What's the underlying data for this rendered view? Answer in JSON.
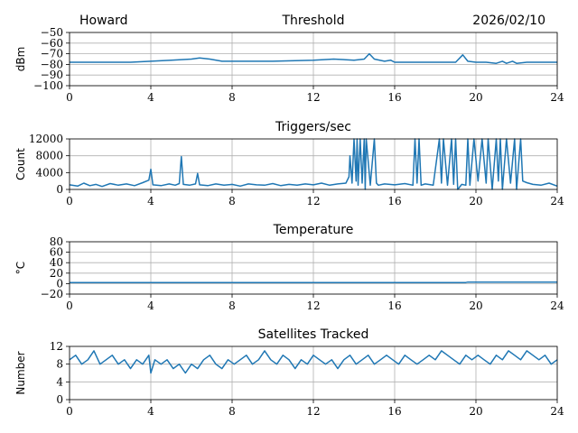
{
  "header": {
    "station": "Howard",
    "date": "2026/02/10"
  },
  "chart_data": [
    {
      "type": "line",
      "title": "Threshold",
      "ylabel": "dBm",
      "xlim": [
        0,
        24
      ],
      "ylim": [
        -100,
        -50
      ],
      "xticks": [
        0,
        4,
        8,
        12,
        16,
        20,
        24
      ],
      "yticks": [
        -100,
        -90,
        -80,
        -70,
        -60,
        -50
      ],
      "ytick_labels": [
        "−100",
        "−90",
        "−80",
        "−70",
        "−60",
        "−50"
      ],
      "series": [
        {
          "name": "Threshold",
          "x": [
            0,
            1,
            2,
            3,
            4,
            5,
            6,
            6.4,
            6.9,
            7.5,
            8,
            10,
            12,
            13,
            14,
            14.5,
            14.75,
            15,
            15.5,
            15.8,
            16,
            17,
            18,
            19,
            19.35,
            19.6,
            20,
            20.5,
            21,
            21.3,
            21.5,
            21.8,
            22,
            22.5,
            23,
            24
          ],
          "y": [
            -78,
            -78,
            -78,
            -78,
            -77,
            -76,
            -75,
            -74,
            -75,
            -77,
            -77,
            -77,
            -76,
            -75,
            -76,
            -75,
            -70,
            -75,
            -77,
            -76,
            -78,
            -78,
            -78,
            -78,
            -71,
            -77,
            -78,
            -78,
            -79,
            -77,
            -79,
            -77,
            -79,
            -78,
            -78,
            -78
          ]
        }
      ]
    },
    {
      "type": "line",
      "title": "Triggers/sec",
      "ylabel": "Count",
      "xlim": [
        0,
        24
      ],
      "ylim": [
        0,
        12000
      ],
      "xticks": [
        0,
        4,
        8,
        12,
        16,
        20,
        24
      ],
      "yticks": [
        0,
        4000,
        8000,
        12000
      ],
      "ytick_labels": [
        "0",
        "4000",
        "8000",
        "12000"
      ],
      "series": [
        {
          "name": "Triggers/sec",
          "x": [
            0,
            0.4,
            0.7,
            1.0,
            1.3,
            1.6,
            2.0,
            2.4,
            2.8,
            3.2,
            3.6,
            3.9,
            4.0,
            4.1,
            4.5,
            4.9,
            5.2,
            5.4,
            5.5,
            5.6,
            5.9,
            6.2,
            6.3,
            6.4,
            6.8,
            7.2,
            7.6,
            8.0,
            8.4,
            8.8,
            9.2,
            9.6,
            10.0,
            10.4,
            10.8,
            11.2,
            11.6,
            12.0,
            12.4,
            12.8,
            13.2,
            13.6,
            13.75,
            13.8,
            13.9,
            14.0,
            14.1,
            14.15,
            14.2,
            14.3,
            14.4,
            14.5,
            14.55,
            14.6,
            14.8,
            15.0,
            15.1,
            15.2,
            15.5,
            16.0,
            16.5,
            16.9,
            17.0,
            17.1,
            17.2,
            17.3,
            17.5,
            17.9,
            18.2,
            18.3,
            18.4,
            18.6,
            18.8,
            18.9,
            19.0,
            19.1,
            19.3,
            19.5,
            19.6,
            19.7,
            19.9,
            20.1,
            20.3,
            20.5,
            20.6,
            20.8,
            21.0,
            21.1,
            21.2,
            21.3,
            21.5,
            21.7,
            21.9,
            22.0,
            22.2,
            22.3,
            22.5,
            22.8,
            23.2,
            23.6,
            24.0
          ],
          "y": [
            1100,
            800,
            1500,
            900,
            1200,
            700,
            1400,
            1000,
            1300,
            900,
            1600,
            2200,
            4800,
            1100,
            900,
            1300,
            1000,
            1400,
            7800,
            1200,
            1000,
            1300,
            3800,
            1100,
            900,
            1300,
            1000,
            1200,
            800,
            1300,
            1100,
            1000,
            1400,
            900,
            1200,
            1000,
            1300,
            1100,
            1500,
            1000,
            1300,
            1500,
            3000,
            8000,
            1500,
            12000,
            2000,
            12000,
            1000,
            12000,
            1500,
            12000,
            0,
            12000,
            1000,
            12000,
            1500,
            1000,
            1300,
            1100,
            1400,
            1000,
            12000,
            1500,
            12000,
            1000,
            1300,
            1000,
            12000,
            1500,
            12000,
            1000,
            12000,
            1200,
            12000,
            0,
            1200,
            1000,
            12000,
            1000,
            12000,
            2000,
            12000,
            1500,
            12000,
            0,
            12000,
            2000,
            12000,
            0,
            12000,
            1500,
            12000,
            0,
            12000,
            2000,
            1600,
            1200,
            1000,
            1500,
            800
          ]
        }
      ]
    },
    {
      "type": "line",
      "title": "Temperature",
      "ylabel": "°C",
      "xlim": [
        0,
        24
      ],
      "ylim": [
        -20,
        80
      ],
      "xticks": [
        0,
        4,
        8,
        12,
        16,
        20,
        24
      ],
      "yticks": [
        -20,
        0,
        20,
        40,
        60,
        80
      ],
      "ytick_labels": [
        "−20",
        "0",
        "20",
        "40",
        "60",
        "80"
      ],
      "series": [
        {
          "name": "Temperature",
          "x": [
            0,
            19.5,
            19.6,
            24
          ],
          "y": [
            2,
            2,
            3,
            3
          ]
        }
      ]
    },
    {
      "type": "line",
      "title": "Satellites Tracked",
      "ylabel": "Number",
      "xlim": [
        0,
        24
      ],
      "ylim": [
        0,
        12
      ],
      "xticks": [
        0,
        4,
        8,
        12,
        16,
        20,
        24
      ],
      "yticks": [
        0,
        4,
        8,
        12
      ],
      "ytick_labels": [
        "0",
        "4",
        "8",
        "12"
      ],
      "series": [
        {
          "name": "Satellites",
          "x": [
            0,
            0.3,
            0.6,
            0.9,
            1.2,
            1.5,
            1.8,
            2.1,
            2.4,
            2.7,
            3.0,
            3.3,
            3.6,
            3.9,
            4.0,
            4.2,
            4.5,
            4.8,
            5.1,
            5.4,
            5.7,
            6.0,
            6.3,
            6.6,
            6.9,
            7.2,
            7.5,
            7.8,
            8.1,
            8.4,
            8.7,
            9.0,
            9.3,
            9.6,
            9.9,
            10.2,
            10.5,
            10.8,
            11.1,
            11.4,
            11.7,
            12.0,
            12.3,
            12.6,
            12.9,
            13.2,
            13.5,
            13.8,
            14.1,
            14.4,
            14.7,
            15.0,
            15.3,
            15.6,
            15.9,
            16.2,
            16.5,
            16.8,
            17.1,
            17.4,
            17.7,
            18.0,
            18.3,
            18.6,
            18.9,
            19.2,
            19.5,
            19.8,
            20.1,
            20.4,
            20.7,
            21.0,
            21.3,
            21.6,
            21.9,
            22.2,
            22.5,
            22.8,
            23.1,
            23.4,
            23.7,
            24.0
          ],
          "y": [
            9,
            10,
            8,
            9,
            11,
            8,
            9,
            10,
            8,
            9,
            7,
            9,
            8,
            10,
            6,
            9,
            8,
            9,
            7,
            8,
            6,
            8,
            7,
            9,
            10,
            8,
            7,
            9,
            8,
            9,
            10,
            8,
            9,
            11,
            9,
            8,
            10,
            9,
            7,
            9,
            8,
            10,
            9,
            8,
            9,
            7,
            9,
            10,
            8,
            9,
            10,
            8,
            9,
            10,
            9,
            8,
            10,
            9,
            8,
            9,
            10,
            9,
            11,
            10,
            9,
            8,
            10,
            9,
            10,
            9,
            8,
            10,
            9,
            11,
            10,
            9,
            11,
            10,
            9,
            10,
            8,
            9
          ]
        }
      ]
    }
  ]
}
